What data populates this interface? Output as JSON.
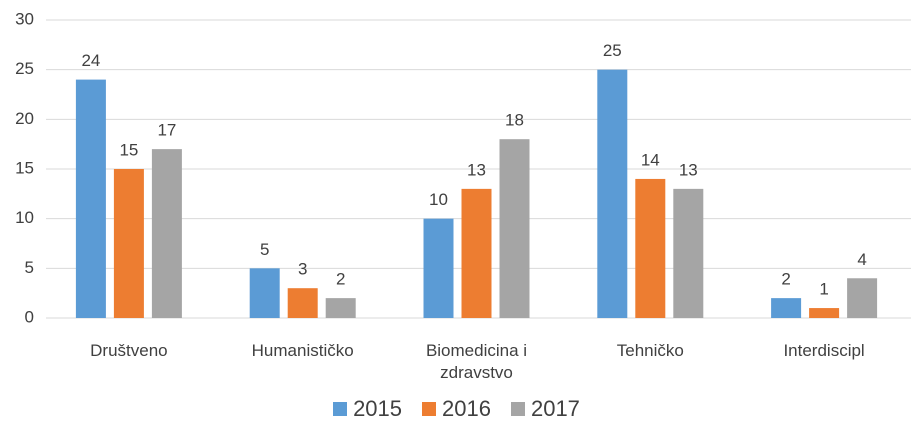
{
  "chart_data": {
    "type": "bar",
    "categories": [
      "Društveno",
      "Humanističko",
      "Biomedicina i zdravstvo",
      "Tehničko",
      "Interdiscipl"
    ],
    "series": [
      {
        "name": "2015",
        "color": "#5b9bd5",
        "values": [
          24,
          5,
          10,
          25,
          2
        ]
      },
      {
        "name": "2016",
        "color": "#ed7d31",
        "values": [
          15,
          3,
          13,
          14,
          1
        ]
      },
      {
        "name": "2017",
        "color": "#a5a5a5",
        "values": [
          17,
          2,
          18,
          13,
          4
        ]
      }
    ],
    "ylim": [
      0,
      30
    ],
    "yticks": [
      0,
      5,
      10,
      15,
      20,
      25,
      30
    ],
    "grid": true,
    "legend": "bottom"
  }
}
